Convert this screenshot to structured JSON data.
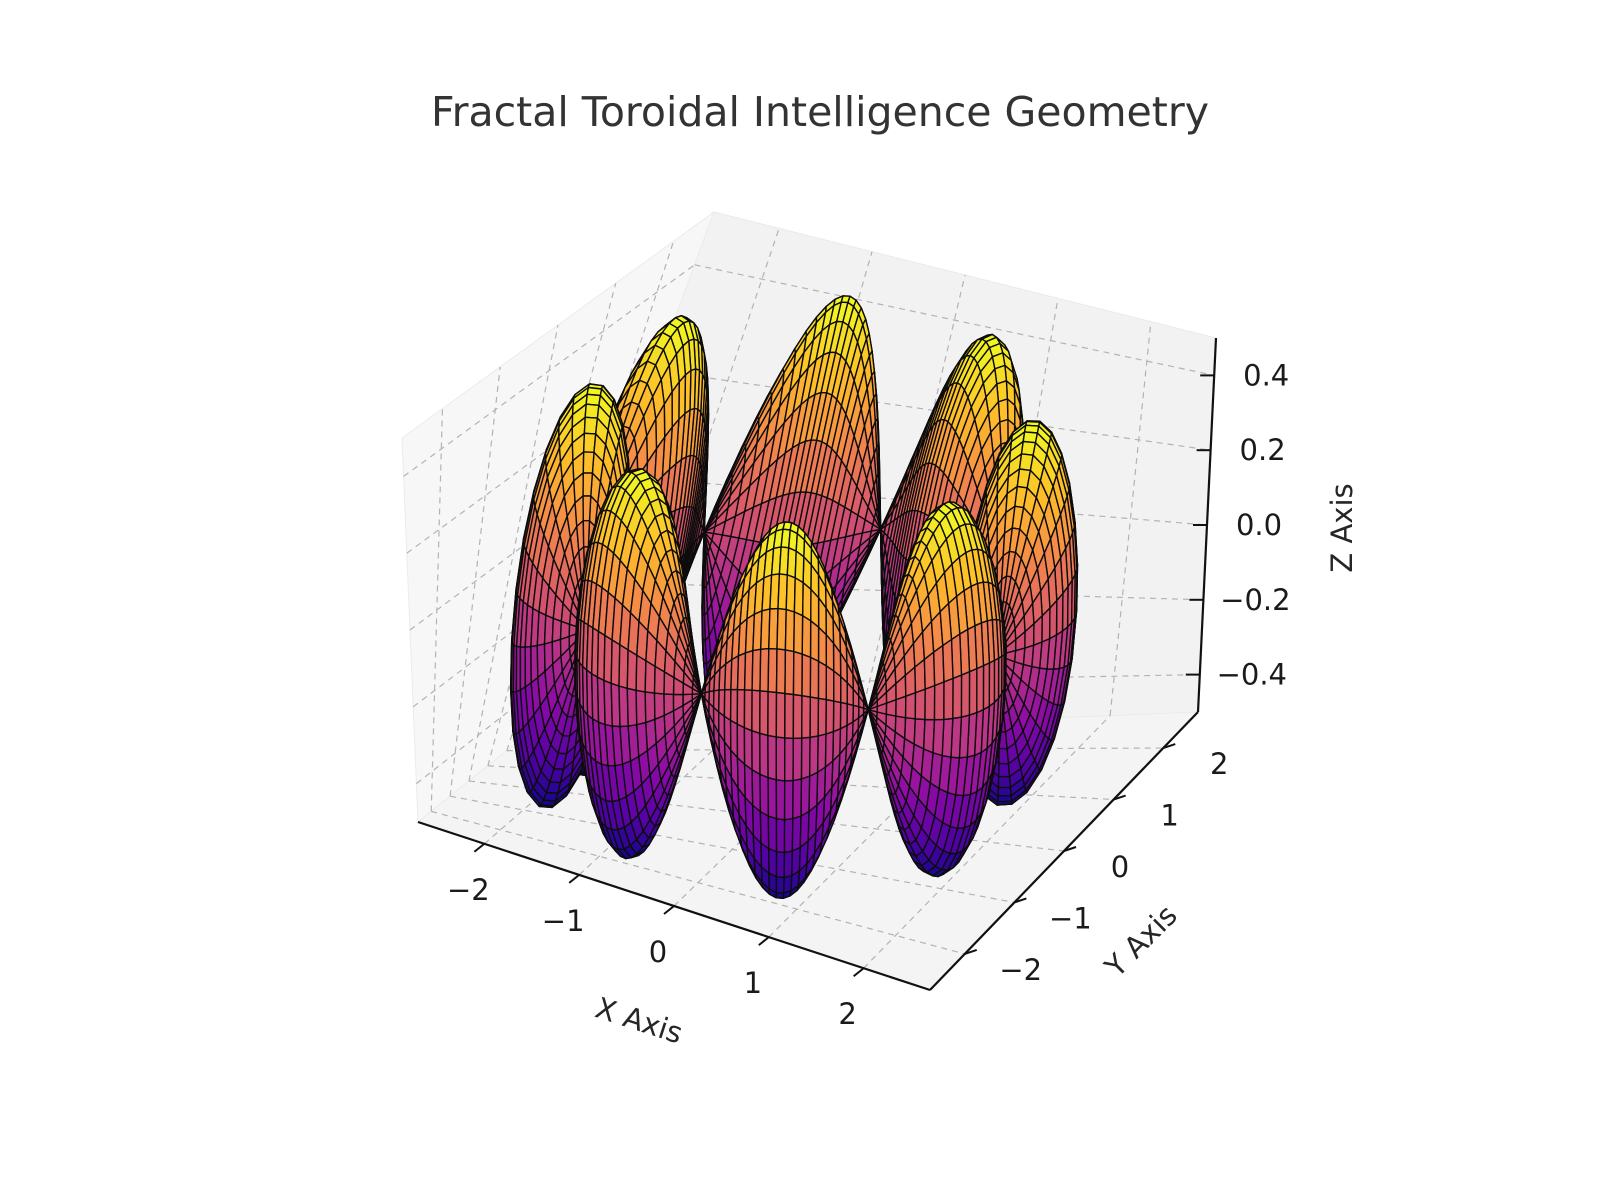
{
  "chart_data": {
    "type": "surface3d",
    "title": "Fractal Toroidal Intelligence Geometry",
    "xlabel": "X Axis",
    "ylabel": "Y Axis",
    "zlabel": "Z Axis",
    "xlim": [
      -2.7,
      2.7
    ],
    "ylim": [
      -2.7,
      2.7
    ],
    "zlim": [
      -0.5,
      0.5
    ],
    "x_ticks": [
      -2,
      -1,
      0,
      1,
      2
    ],
    "y_ticks": [
      -2,
      -1,
      0,
      1,
      2
    ],
    "z_ticks": [
      -0.4,
      -0.2,
      0.0,
      0.2,
      0.4
    ],
    "x_tick_labels": [
      "−2",
      "−1",
      "0",
      "1",
      "2"
    ],
    "y_tick_labels": [
      "−2",
      "−1",
      "0",
      "1",
      "2"
    ],
    "z_tick_labels": [
      "−0.4",
      "−0.2",
      "0.0",
      "0.2",
      "0.4"
    ],
    "grid": true,
    "colormap": "plasma",
    "colormap_stops": [
      "#0d0887",
      "#5302a3",
      "#8b0aa5",
      "#b83289",
      "#db5c68",
      "#f48849",
      "#febd2a",
      "#f0f921"
    ],
    "edge_color": "#000000",
    "surface": {
      "lobes": 8,
      "major_radius": 2.0,
      "tube_radius": 0.5,
      "z_amplitude": 0.5,
      "color_by": "z"
    }
  }
}
